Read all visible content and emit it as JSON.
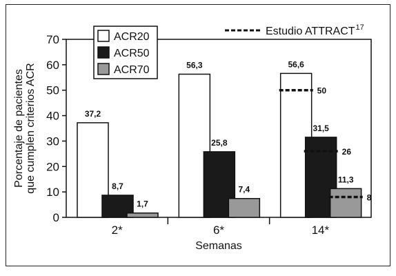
{
  "chart_data": {
    "type": "bar",
    "title": "",
    "xlabel": "Semanas",
    "ylabel": [
      "Porcentaje de pacientes",
      "que cumplen criterios ACR"
    ],
    "ylim": [
      0,
      70
    ],
    "yticks": [
      0,
      10,
      20,
      30,
      40,
      50,
      60,
      70
    ],
    "categories": [
      "2*",
      "6*",
      "14*"
    ],
    "series": [
      {
        "name": "ACR20",
        "color": "#ffffff",
        "values": [
          37.2,
          56.3,
          56.6
        ],
        "labels": [
          "37,2",
          "56,3",
          "56,6"
        ]
      },
      {
        "name": "ACR50",
        "color": "#1a1a1a",
        "values": [
          8.7,
          25.8,
          31.5
        ],
        "labels": [
          "8,7",
          "25,8",
          "31,5"
        ]
      },
      {
        "name": "ACR70",
        "color": "#999999",
        "values": [
          1.7,
          7.4,
          11.3
        ],
        "labels": [
          "1,7",
          "7,4",
          "11,3"
        ]
      }
    ],
    "reference": {
      "name": "Estudio ATTRACT",
      "superscript": "17",
      "category": "14*",
      "values": [
        50,
        26,
        8
      ],
      "labels": [
        "50",
        "26",
        "8"
      ]
    },
    "legend_position": "top-left",
    "grid": false
  }
}
